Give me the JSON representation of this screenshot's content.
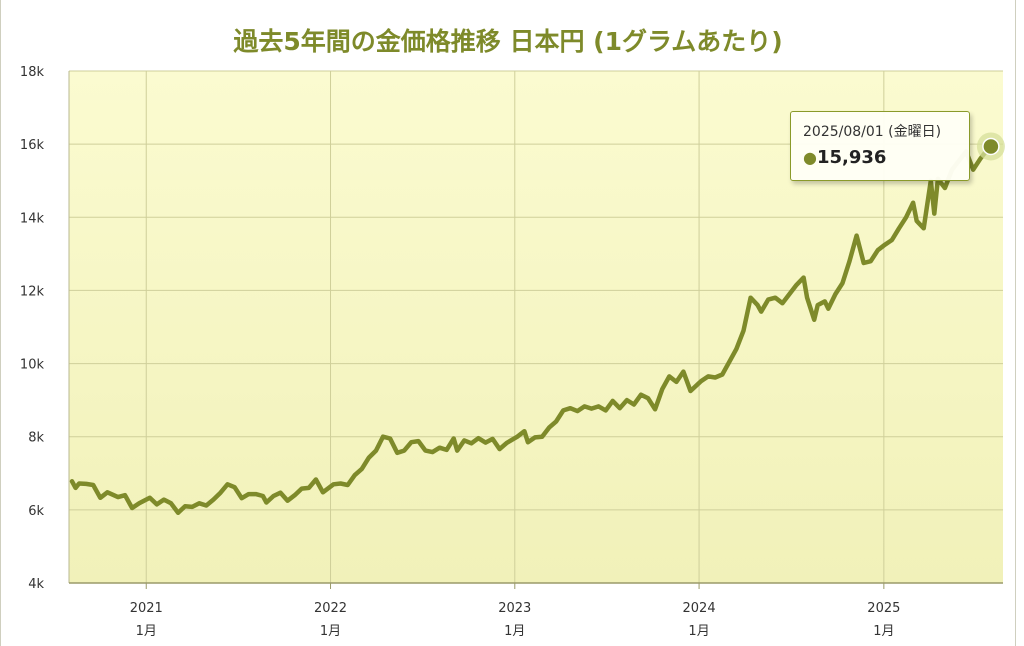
{
  "chart_data": {
    "type": "line",
    "title": "過去5年間の金価格推移 日本円 (1グラムあたり)",
    "xlabel": "",
    "ylabel": "",
    "ylim": [
      4000,
      18000
    ],
    "y_ticks": [
      {
        "value": 4000,
        "label": "4k"
      },
      {
        "value": 6000,
        "label": "6k"
      },
      {
        "value": 8000,
        "label": "8k"
      },
      {
        "value": 10000,
        "label": "10k"
      },
      {
        "value": 12000,
        "label": "12k"
      },
      {
        "value": 14000,
        "label": "14k"
      },
      {
        "value": 16000,
        "label": "16k"
      },
      {
        "value": 18000,
        "label": "18k"
      }
    ],
    "x_range": [
      "2020-08-01",
      "2025-08-25"
    ],
    "x_ticks": [
      {
        "date": "2021-01-01",
        "year": "2021",
        "month": "1月"
      },
      {
        "date": "2022-01-01",
        "year": "2022",
        "month": "1月"
      },
      {
        "date": "2023-01-01",
        "year": "2023",
        "month": "1月"
      },
      {
        "date": "2024-01-01",
        "year": "2024",
        "month": "1月"
      },
      {
        "date": "2025-01-01",
        "year": "2025",
        "month": "1月"
      }
    ],
    "grid": true,
    "line_color": "#7e8a2a",
    "series": [
      {
        "points": [
          [
            "2020-08-07",
            6780
          ],
          [
            "2020-08-14",
            6600
          ],
          [
            "2020-08-21",
            6720
          ],
          [
            "2020-09-04",
            6710
          ],
          [
            "2020-09-18",
            6680
          ],
          [
            "2020-10-02",
            6330
          ],
          [
            "2020-10-16",
            6480
          ],
          [
            "2020-11-06",
            6350
          ],
          [
            "2020-11-20",
            6400
          ],
          [
            "2020-12-04",
            6050
          ],
          [
            "2020-12-18",
            6180
          ],
          [
            "2021-01-08",
            6330
          ],
          [
            "2021-01-22",
            6150
          ],
          [
            "2021-02-05",
            6280
          ],
          [
            "2021-02-19",
            6180
          ],
          [
            "2021-03-05",
            5920
          ],
          [
            "2021-03-19",
            6100
          ],
          [
            "2021-04-02",
            6080
          ],
          [
            "2021-04-16",
            6180
          ],
          [
            "2021-04-30",
            6120
          ],
          [
            "2021-05-14",
            6280
          ],
          [
            "2021-05-28",
            6470
          ],
          [
            "2021-06-11",
            6700
          ],
          [
            "2021-06-25",
            6620
          ],
          [
            "2021-07-09",
            6320
          ],
          [
            "2021-07-23",
            6430
          ],
          [
            "2021-08-06",
            6430
          ],
          [
            "2021-08-20",
            6380
          ],
          [
            "2021-08-27",
            6200
          ],
          [
            "2021-09-10",
            6380
          ],
          [
            "2021-09-24",
            6470
          ],
          [
            "2021-10-08",
            6250
          ],
          [
            "2021-10-22",
            6400
          ],
          [
            "2021-11-05",
            6580
          ],
          [
            "2021-11-19",
            6600
          ],
          [
            "2021-12-03",
            6830
          ],
          [
            "2021-12-17",
            6480
          ],
          [
            "2022-01-07",
            6700
          ],
          [
            "2022-01-21",
            6720
          ],
          [
            "2022-02-04",
            6680
          ],
          [
            "2022-02-18",
            6950
          ],
          [
            "2022-03-04",
            7120
          ],
          [
            "2022-03-18",
            7430
          ],
          [
            "2022-04-01",
            7620
          ],
          [
            "2022-04-15",
            8000
          ],
          [
            "2022-04-29",
            7950
          ],
          [
            "2022-05-13",
            7560
          ],
          [
            "2022-05-27",
            7620
          ],
          [
            "2022-06-10",
            7850
          ],
          [
            "2022-06-24",
            7880
          ],
          [
            "2022-07-08",
            7620
          ],
          [
            "2022-07-22",
            7580
          ],
          [
            "2022-08-05",
            7700
          ],
          [
            "2022-08-19",
            7640
          ],
          [
            "2022-09-02",
            7950
          ],
          [
            "2022-09-09",
            7620
          ],
          [
            "2022-09-23",
            7900
          ],
          [
            "2022-10-07",
            7820
          ],
          [
            "2022-10-21",
            7960
          ],
          [
            "2022-11-04",
            7840
          ],
          [
            "2022-11-18",
            7940
          ],
          [
            "2022-12-02",
            7660
          ],
          [
            "2022-12-16",
            7830
          ],
          [
            "2023-01-06",
            8000
          ],
          [
            "2023-01-20",
            8150
          ],
          [
            "2023-01-27",
            7850
          ],
          [
            "2023-02-10",
            7980
          ],
          [
            "2023-02-24",
            8000
          ],
          [
            "2023-03-10",
            8250
          ],
          [
            "2023-03-24",
            8420
          ],
          [
            "2023-04-07",
            8720
          ],
          [
            "2023-04-21",
            8780
          ],
          [
            "2023-05-05",
            8700
          ],
          [
            "2023-05-19",
            8830
          ],
          [
            "2023-06-02",
            8770
          ],
          [
            "2023-06-16",
            8830
          ],
          [
            "2023-06-30",
            8720
          ],
          [
            "2023-07-14",
            8980
          ],
          [
            "2023-07-28",
            8780
          ],
          [
            "2023-08-11",
            9000
          ],
          [
            "2023-08-25",
            8880
          ],
          [
            "2023-09-08",
            9150
          ],
          [
            "2023-09-22",
            9050
          ],
          [
            "2023-10-06",
            8750
          ],
          [
            "2023-10-20",
            9300
          ],
          [
            "2023-11-03",
            9650
          ],
          [
            "2023-11-17",
            9500
          ],
          [
            "2023-12-01",
            9780
          ],
          [
            "2023-12-15",
            9250
          ],
          [
            "2024-01-05",
            9520
          ],
          [
            "2024-01-19",
            9650
          ],
          [
            "2024-02-02",
            9620
          ],
          [
            "2024-02-16",
            9700
          ],
          [
            "2024-03-01",
            10050
          ],
          [
            "2024-03-15",
            10400
          ],
          [
            "2024-03-29",
            10900
          ],
          [
            "2024-04-12",
            11800
          ],
          [
            "2024-04-26",
            11600
          ],
          [
            "2024-05-03",
            11420
          ],
          [
            "2024-05-17",
            11750
          ],
          [
            "2024-05-31",
            11800
          ],
          [
            "2024-06-14",
            11650
          ],
          [
            "2024-06-28",
            11900
          ],
          [
            "2024-07-12",
            12150
          ],
          [
            "2024-07-26",
            12350
          ],
          [
            "2024-08-02",
            11800
          ],
          [
            "2024-08-16",
            11200
          ],
          [
            "2024-08-23",
            11600
          ],
          [
            "2024-09-06",
            11700
          ],
          [
            "2024-09-13",
            11500
          ],
          [
            "2024-09-27",
            11900
          ],
          [
            "2024-10-11",
            12200
          ],
          [
            "2024-10-25",
            12800
          ],
          [
            "2024-11-08",
            13500
          ],
          [
            "2024-11-22",
            12750
          ],
          [
            "2024-12-06",
            12800
          ],
          [
            "2024-12-20",
            13100
          ],
          [
            "2025-01-03",
            13250
          ],
          [
            "2025-01-17",
            13380
          ],
          [
            "2025-01-31",
            13700
          ],
          [
            "2025-02-14",
            14000
          ],
          [
            "2025-02-28",
            14400
          ],
          [
            "2025-03-07",
            13900
          ],
          [
            "2025-03-21",
            13700
          ],
          [
            "2025-04-04",
            15000
          ],
          [
            "2025-04-11",
            14100
          ],
          [
            "2025-04-18",
            15050
          ],
          [
            "2025-05-02",
            14800
          ],
          [
            "2025-05-16",
            15300
          ],
          [
            "2025-05-30",
            15550
          ],
          [
            "2025-06-13",
            15800
          ],
          [
            "2025-06-27",
            15300
          ],
          [
            "2025-07-11",
            15600
          ],
          [
            "2025-07-25",
            15850
          ],
          [
            "2025-08-01",
            15936
          ]
        ]
      }
    ],
    "tooltip": {
      "date": "2025/08/01 (金曜日)",
      "value": "15,936",
      "point": [
        "2025-08-01",
        15936
      ]
    }
  }
}
